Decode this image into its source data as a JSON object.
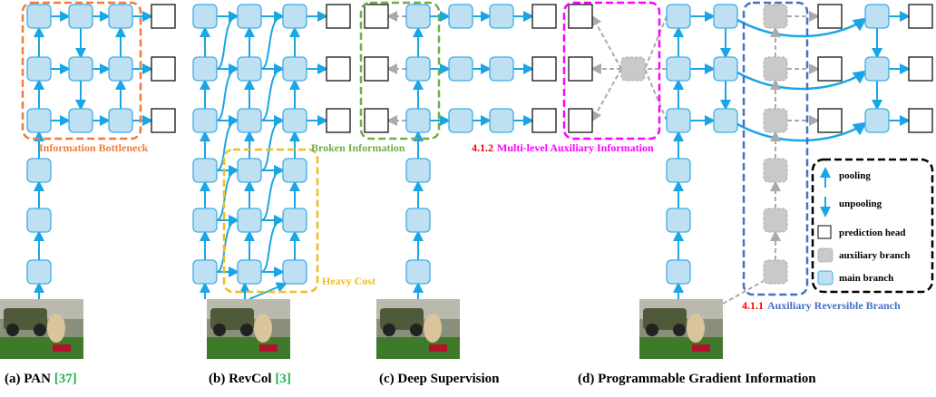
{
  "colors": {
    "main": "#bfdff3",
    "main_stroke": "#3eaee6",
    "aux": "#c9c9c9",
    "arrow": "#1aa6e4",
    "bottleneck": "#ee7d3b",
    "heavy": "#f2bd1a",
    "broken": "#70ad47",
    "multilevel": "#ff00ff",
    "reversible": "#4472c4",
    "ref": "#22b14c",
    "section": "#ff0000"
  },
  "labels": {
    "bottleneck": "Information Bottleneck",
    "heavy_cost": "Heavy Cost",
    "broken": "Broken Information",
    "multilevel_num": "4.1.2",
    "multilevel": "Multi-level Auxiliary Information",
    "reversible_num": "4.1.1",
    "reversible": "Auxiliary Reversible Branch"
  },
  "legend": {
    "pooling": "pooling",
    "unpooling": "unpooling",
    "prediction_head": "prediction head",
    "auxiliary_branch": "auxiliary branch",
    "main_branch": "main branch"
  },
  "captions": [
    {
      "text": "(a) PAN ",
      "ref": "[37]"
    },
    {
      "text": "(b) RevCol ",
      "ref": "[3]"
    },
    {
      "text": "(c) Deep Supervision",
      "ref": ""
    },
    {
      "text": "(d) Programmable Gradient Information",
      "ref": ""
    }
  ]
}
